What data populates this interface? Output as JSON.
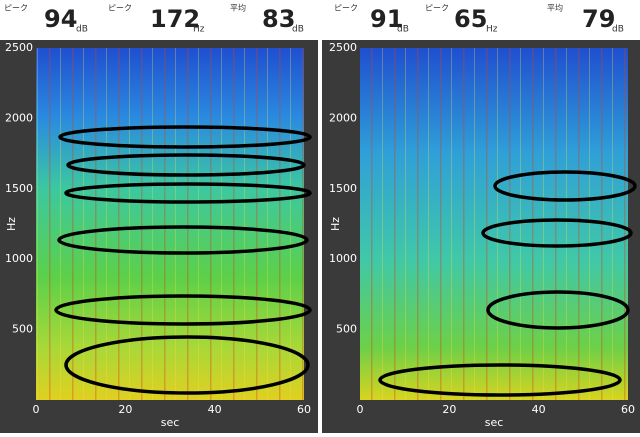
{
  "panels": [
    {
      "readouts": [
        {
          "label": "ピーク",
          "value": "94",
          "unit": "dB"
        },
        {
          "label": "ピーク",
          "value": "172",
          "unit": "Hz"
        },
        {
          "label": "平均",
          "value": "83",
          "unit": "dB"
        }
      ],
      "y_axis": {
        "label": "Hz",
        "ticks": [
          500,
          1000,
          1500,
          2000,
          2500
        ]
      },
      "x_axis": {
        "label": "sec",
        "ticks": [
          0,
          20,
          40,
          60
        ]
      }
    },
    {
      "readouts": [
        {
          "label": "ピーク",
          "value": "91",
          "unit": "dB"
        },
        {
          "label": "ピーク",
          "value": "65",
          "unit": "Hz"
        },
        {
          "label": "平均",
          "value": "79",
          "unit": "dB"
        }
      ],
      "y_axis": {
        "label": "Hz",
        "ticks": [
          500,
          1000,
          1500,
          2000,
          2500
        ]
      },
      "x_axis": {
        "label": "sec",
        "ticks": [
          0,
          20,
          40,
          60
        ]
      }
    }
  ]
}
